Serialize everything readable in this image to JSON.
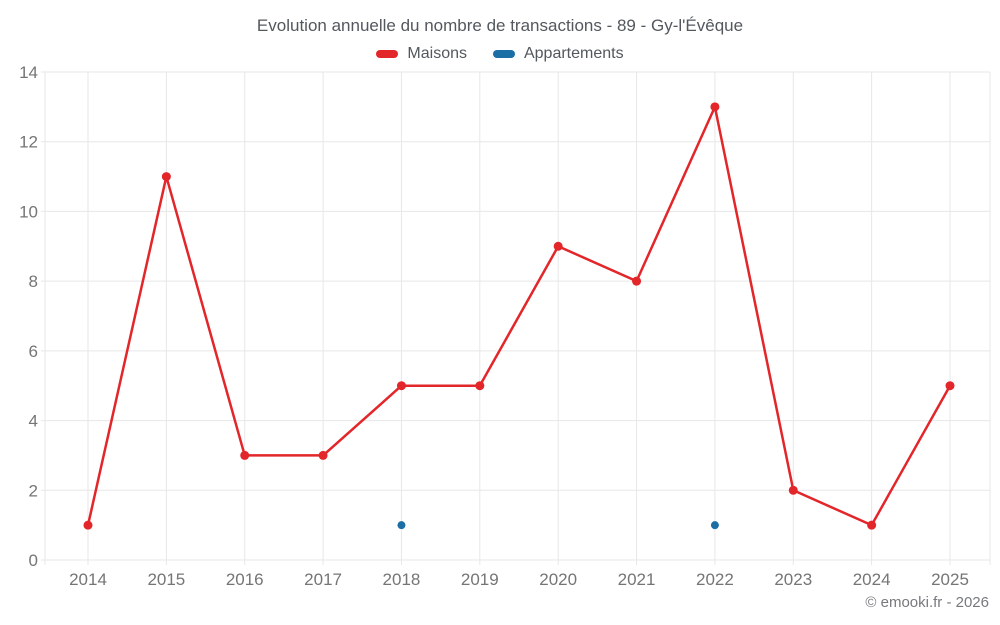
{
  "title": "Evolution annuelle du nombre de transactions - 89 - Gy-l'Évêque",
  "copyright": "© emooki.fr - 2026",
  "legend": [
    {
      "label": "Maisons",
      "color": "#e3262a"
    },
    {
      "label": "Appartements",
      "color": "#1b6fa5"
    }
  ],
  "colors": {
    "grid": "#e7e7e7",
    "tick_text": "#757575",
    "title_text": "#53585e",
    "maisons": "#e3262a",
    "appartements": "#1b6fa5",
    "background": "#ffffff"
  },
  "chart_data": {
    "type": "line",
    "title": "Evolution annuelle du nombre de transactions - 89 - Gy-l'Évêque",
    "xlabel": "",
    "ylabel": "",
    "x": [
      2014,
      2015,
      2016,
      2017,
      2018,
      2019,
      2020,
      2021,
      2022,
      2023,
      2024,
      2025
    ],
    "series": [
      {
        "name": "Maisons",
        "color": "#e3262a",
        "style": "line+markers",
        "values": [
          1,
          11,
          3,
          3,
          5,
          5,
          9,
          8,
          13,
          2,
          1,
          5
        ]
      },
      {
        "name": "Appartements",
        "color": "#1b6fa5",
        "style": "markers",
        "values": [
          null,
          null,
          null,
          null,
          1,
          null,
          null,
          null,
          1,
          null,
          null,
          null
        ]
      }
    ],
    "ylim": [
      0,
      14
    ],
    "ytick_step": 2,
    "grid": true,
    "legend_position": "top"
  }
}
